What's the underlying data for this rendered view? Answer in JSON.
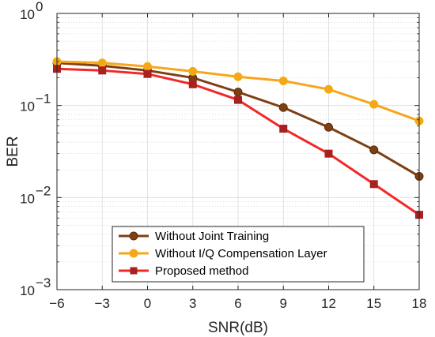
{
  "chart_data": {
    "type": "line",
    "xlabel": "SNR(dB)",
    "ylabel": "BER",
    "yscale": "log",
    "xlim": [
      -6,
      18
    ],
    "ylim": [
      0.001,
      1
    ],
    "grid": true,
    "legend_position": "bottom-center",
    "x": [
      -6,
      -3,
      0,
      3,
      6,
      9,
      12,
      15,
      18
    ],
    "x_tick_labels": [
      "−6",
      "−3",
      "0",
      "3",
      "6",
      "9",
      "12",
      "15",
      "18"
    ],
    "y_ticks": [
      {
        "value": 1,
        "base": "10",
        "exp": "0"
      },
      {
        "value": 0.1,
        "base": "10",
        "exp": "−1"
      },
      {
        "value": 0.01,
        "base": "10",
        "exp": "−2"
      },
      {
        "value": 0.001,
        "base": "10",
        "exp": "−3"
      }
    ],
    "series": [
      {
        "name": "Without Joint Training",
        "color": "#7E3F12",
        "marker": "circle",
        "values": [
          0.29,
          0.27,
          0.24,
          0.2,
          0.14,
          0.095,
          0.058,
          0.033,
          0.017
        ]
      },
      {
        "name": "Without I/Q Compensation Layer",
        "color": "#F8A51E",
        "marker": "circle",
        "values": [
          0.3,
          0.29,
          0.265,
          0.235,
          0.205,
          0.185,
          0.15,
          0.103,
          0.068
        ]
      },
      {
        "name": "Proposed method",
        "color": "#F22727",
        "marker": "square",
        "marker_color": "#A82020",
        "values": [
          0.25,
          0.24,
          0.22,
          0.17,
          0.115,
          0.056,
          0.03,
          0.014,
          0.0065
        ]
      }
    ]
  }
}
